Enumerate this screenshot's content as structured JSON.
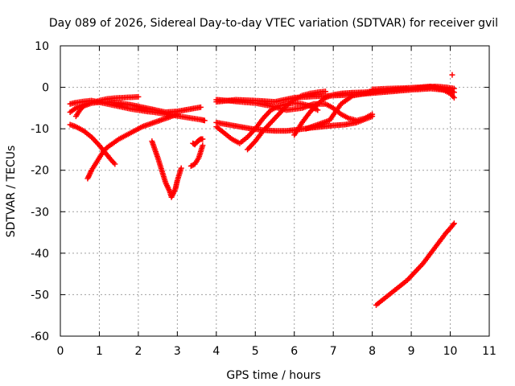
{
  "chart_data": {
    "type": "scatter",
    "title": "Day 089 of 2026, Sidereal Day-to-day VTEC variation (SDTVAR) for receiver gvil",
    "xlabel": "GPS time / hours",
    "ylabel": "SDTVAR / TECUs",
    "xlim": [
      0,
      11
    ],
    "ylim": [
      -60,
      10
    ],
    "xticks": [
      "0",
      "1",
      "2",
      "3",
      "4",
      "5",
      "6",
      "7",
      "8",
      "9",
      "10",
      "11"
    ],
    "yticks": [
      "10",
      "0",
      "-10",
      "-20",
      "-30",
      "-40",
      "-50",
      "-60"
    ],
    "grid": true,
    "marker": "+",
    "color": "#ff0000",
    "series": [
      {
        "x": [
          0.25,
          0.4,
          0.6,
          0.8,
          1.0,
          1.2,
          1.4,
          1.6,
          1.8,
          2.0,
          2.2,
          2.4,
          2.6,
          2.8,
          3.0,
          3.2,
          3.4,
          3.6,
          3.7
        ],
        "y": [
          -4.0,
          -3.7,
          -3.4,
          -3.2,
          -3.6,
          -4.0,
          -4.4,
          -4.8,
          -5.2,
          -5.5,
          -5.8,
          -6.0,
          -6.3,
          -6.6,
          -6.9,
          -7.2,
          -7.5,
          -7.8,
          -8.0
        ]
      },
      {
        "x": [
          0.25,
          0.4,
          0.6,
          0.8,
          1.0,
          1.2,
          1.5,
          1.8,
          2.1,
          2.4,
          2.7,
          3.0,
          3.3,
          3.6
        ],
        "y": [
          -6.0,
          -5.0,
          -4.2,
          -3.8,
          -3.6,
          -3.5,
          -3.8,
          -4.2,
          -4.8,
          -5.4,
          -6.0,
          -5.8,
          -5.3,
          -4.8
        ]
      },
      {
        "x": [
          0.4,
          0.5,
          0.6,
          0.8,
          1.0,
          1.2,
          1.4,
          1.6,
          1.8,
          2.0
        ],
        "y": [
          -7.0,
          -5.5,
          -4.5,
          -3.8,
          -3.2,
          -2.8,
          -2.6,
          -2.5,
          -2.4,
          -2.3
        ]
      },
      {
        "x": [
          0.25,
          0.4,
          0.6,
          0.8,
          1.0,
          1.1,
          1.2,
          1.3,
          1.4
        ],
        "y": [
          -9.0,
          -9.5,
          -10.5,
          -12.0,
          -14.0,
          -15.2,
          -16.3,
          -17.5,
          -18.5
        ]
      },
      {
        "x": [
          0.7,
          0.8,
          0.9,
          1.0,
          1.1,
          1.2,
          1.35,
          1.5,
          1.7,
          1.9,
          2.1,
          2.4,
          2.7,
          3.0
        ],
        "y": [
          -22.0,
          -20.0,
          -18.5,
          -17.0,
          -15.5,
          -14.5,
          -13.5,
          -12.5,
          -11.5,
          -10.5,
          -9.5,
          -8.5,
          -7.5,
          -6.5
        ]
      },
      {
        "x": [
          2.35,
          2.5,
          2.6,
          2.7,
          2.8,
          2.85,
          2.9,
          2.95,
          3.0,
          3.05,
          3.1
        ],
        "y": [
          -13.0,
          -17.0,
          -20.0,
          -23.0,
          -25.0,
          -26.5,
          -25.5,
          -24.5,
          -22.5,
          -21.0,
          -19.5
        ]
      },
      {
        "x": [
          3.35,
          3.45,
          3.55,
          3.6,
          3.65
        ],
        "y": [
          -19.0,
          -18.5,
          -17.0,
          -15.5,
          -14.0
        ]
      },
      {
        "x": [
          3.4,
          3.45,
          3.5,
          3.55,
          3.6,
          3.65
        ],
        "y": [
          -13.5,
          -13.8,
          -13.2,
          -12.8,
          -12.5,
          -12.5
        ]
      },
      {
        "x": [
          4.0,
          4.5,
          5.0,
          5.5,
          6.0,
          6.5,
          7.0,
          7.5,
          8.0,
          8.5,
          9.0,
          9.5,
          10.0,
          10.1
        ],
        "y": [
          -3.5,
          -3.0,
          -3.2,
          -3.5,
          -2.5,
          -2.2,
          -2.0,
          -1.8,
          -1.4,
          -1.0,
          -0.6,
          -0.3,
          -0.8,
          -1.2
        ]
      },
      {
        "x": [
          4.0,
          4.3,
          4.6,
          4.9,
          5.2,
          5.5,
          5.8,
          6.1,
          6.4,
          6.7,
          7.0,
          7.3,
          7.6,
          8.0
        ],
        "y": [
          -8.5,
          -9.0,
          -9.5,
          -10.0,
          -10.3,
          -10.5,
          -10.5,
          -10.2,
          -9.8,
          -9.5,
          -9.2,
          -9.0,
          -8.5,
          -7.0
        ]
      },
      {
        "x": [
          4.0,
          4.2,
          4.4,
          4.6,
          4.8,
          5.0,
          5.2,
          5.4,
          5.6,
          5.8,
          6.0,
          6.2,
          6.4,
          6.6
        ],
        "y": [
          -9.5,
          -11.0,
          -12.5,
          -13.5,
          -12.0,
          -10.0,
          -7.5,
          -5.5,
          -4.5,
          -4.0,
          -3.8,
          -4.0,
          -4.5,
          -5.5
        ]
      },
      {
        "x": [
          4.0,
          4.3,
          4.6,
          5.0,
          5.4,
          5.8,
          6.2,
          6.5,
          6.8,
          7.0,
          7.2,
          7.4,
          7.6,
          7.8,
          8.0
        ],
        "y": [
          -3.0,
          -3.2,
          -3.5,
          -3.8,
          -4.5,
          -5.5,
          -5.0,
          -4.0,
          -4.0,
          -5.0,
          -6.5,
          -7.5,
          -8.0,
          -7.5,
          -6.5
        ]
      },
      {
        "x": [
          4.8,
          5.0,
          5.2,
          5.4,
          5.6,
          5.8,
          6.0,
          6.2,
          6.4,
          6.6,
          6.8
        ],
        "y": [
          -15.0,
          -13.0,
          -10.5,
          -8.5,
          -6.5,
          -4.5,
          -3.0,
          -2.0,
          -1.5,
          -1.2,
          -1.0
        ]
      },
      {
        "x": [
          6.0,
          6.2,
          6.4,
          6.6,
          6.8,
          7.0,
          7.2,
          7.5,
          7.8,
          8.0
        ],
        "y": [
          -11.5,
          -8.5,
          -6.0,
          -4.0,
          -2.5,
          -1.8,
          -1.5,
          -1.3,
          -1.2,
          -1.0
        ]
      },
      {
        "x": [
          6.3,
          6.6,
          6.9,
          7.2,
          7.5,
          7.8,
          8.1,
          8.4,
          8.7,
          9.0,
          9.3,
          9.6,
          9.9,
          10.1
        ],
        "y": [
          -10.0,
          -9.0,
          -8.0,
          -4.0,
          -2.0,
          -1.5,
          -1.0,
          -0.7,
          -0.5,
          -0.3,
          -0.1,
          0.2,
          0.0,
          -0.3
        ]
      },
      {
        "x": [
          8.0,
          8.4,
          8.8,
          9.2,
          9.5,
          9.8,
          10.0,
          10.1
        ],
        "y": [
          -0.5,
          -0.3,
          -0.2,
          0.0,
          0.2,
          -0.5,
          -1.5,
          -2.5
        ]
      },
      {
        "x": [
          10.05
        ],
        "y": [
          3.0
        ]
      },
      {
        "x": [
          8.1,
          8.3,
          8.5,
          8.7,
          8.9,
          9.1,
          9.3,
          9.5,
          9.7,
          9.9,
          10.0,
          10.1
        ],
        "y": [
          -52.5,
          -51.0,
          -49.5,
          -48.0,
          -46.5,
          -44.5,
          -42.5,
          -40.0,
          -37.5,
          -35.0,
          -34.0,
          -32.8
        ]
      }
    ]
  }
}
